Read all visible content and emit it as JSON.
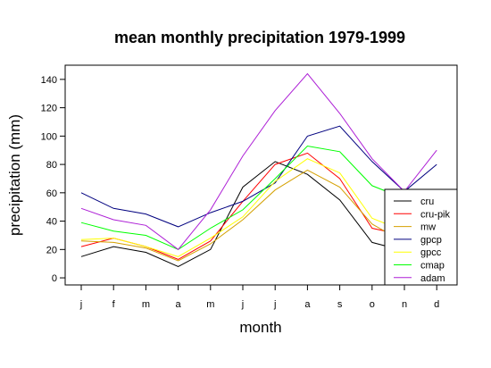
{
  "chart_data": {
    "type": "line",
    "title": "mean monthly precipitation 1979-1999",
    "xlabel": "month",
    "ylabel": "precipitation (mm)",
    "categories": [
      "j",
      "f",
      "m",
      "a",
      "m",
      "j",
      "j",
      "a",
      "s",
      "o",
      "n",
      "d"
    ],
    "yticks": [
      0,
      20,
      40,
      60,
      80,
      100,
      120,
      140
    ],
    "ylim": [
      -5,
      150
    ],
    "grid": false,
    "legend_position": "bottom-right",
    "series": [
      {
        "name": "cru",
        "color": "#000000",
        "values": [
          15,
          22,
          18,
          8,
          20,
          64,
          82,
          73,
          55,
          25,
          19,
          21
        ]
      },
      {
        "name": "cru-pik",
        "color": "#ff0000",
        "values": [
          22,
          28,
          22,
          13,
          26,
          54,
          80,
          88,
          70,
          35,
          30,
          40
        ]
      },
      {
        "name": "mw",
        "color": "#d4a000",
        "values": [
          26,
          25,
          21,
          12,
          24,
          41,
          62,
          76,
          64,
          38,
          25,
          30
        ]
      },
      {
        "name": "gpcp",
        "color": "#00007f",
        "values": [
          60,
          49,
          45,
          36,
          46,
          54,
          67,
          100,
          107,
          82,
          61,
          80
        ]
      },
      {
        "name": "gpcc",
        "color": "#ffff00",
        "values": [
          27,
          28,
          22,
          15,
          28,
          43,
          68,
          84,
          74,
          42,
          33,
          40
        ]
      },
      {
        "name": "cmap",
        "color": "#00ff00",
        "values": [
          39,
          33,
          30,
          20,
          35,
          48,
          70,
          93,
          89,
          65,
          56,
          62
        ]
      },
      {
        "name": "adam",
        "color": "#ad1fd6",
        "values": [
          49,
          41,
          37,
          20,
          48,
          86,
          118,
          144,
          116,
          84,
          61,
          90
        ]
      }
    ]
  }
}
